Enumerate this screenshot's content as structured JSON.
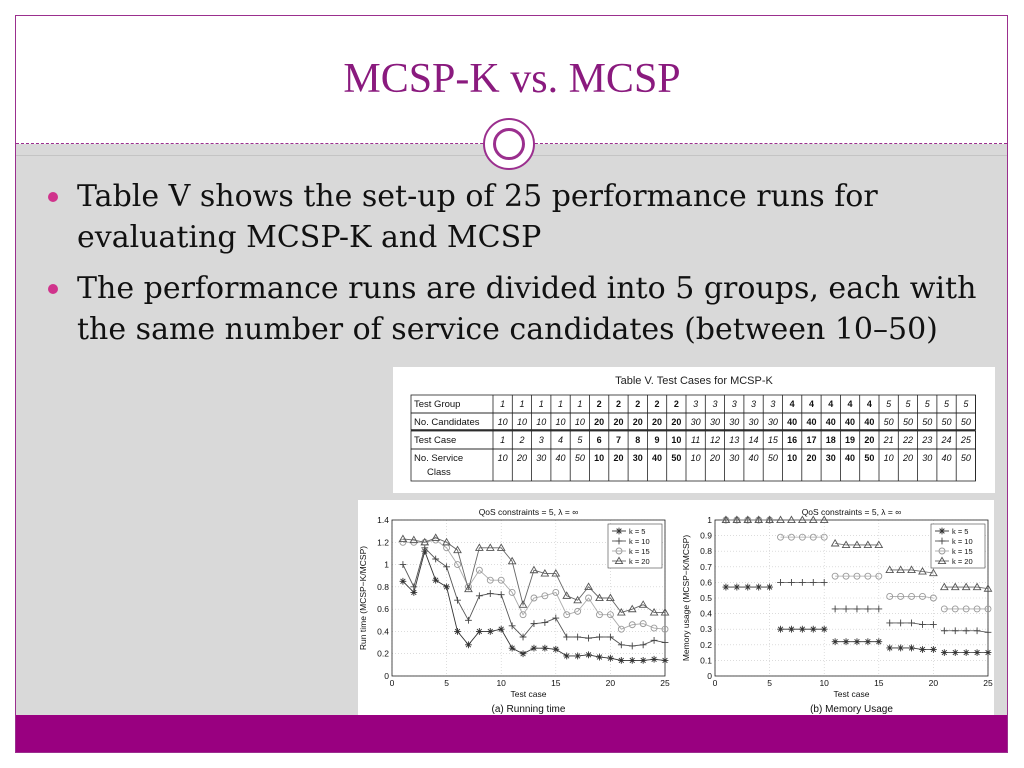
{
  "slide": {
    "title": "MCSP-K vs. MCSP",
    "bullets": [
      "Table V shows the set-up of 25 performance runs for evaluating MCSP-K and MCSP",
      "The performance runs are divided  into 5 groups, each with the same number of service candidates (between 10–50)"
    ],
    "colors": {
      "accent": "#8a1a7e",
      "bullet": "#d0338c",
      "footer": "#990080",
      "body_bg": "#d9d9d9"
    }
  },
  "table_v": {
    "caption": "Table V.  Test Cases for MCSP-K",
    "rows": [
      {
        "label": "Test Group",
        "cells": [
          "1",
          "1",
          "1",
          "1",
          "1",
          "2",
          "2",
          "2",
          "2",
          "2",
          "3",
          "3",
          "3",
          "3",
          "3",
          "4",
          "4",
          "4",
          "4",
          "4",
          "5",
          "5",
          "5",
          "5",
          "5"
        ]
      },
      {
        "label": "No. Candidates",
        "cells": [
          "10",
          "10",
          "10",
          "10",
          "10",
          "20",
          "20",
          "20",
          "20",
          "20",
          "30",
          "30",
          "30",
          "30",
          "30",
          "40",
          "40",
          "40",
          "40",
          "40",
          "50",
          "50",
          "50",
          "50",
          "50"
        ]
      },
      {
        "label": "Test Case",
        "cells": [
          "1",
          "2",
          "3",
          "4",
          "5",
          "6",
          "7",
          "8",
          "9",
          "10",
          "11",
          "12",
          "13",
          "14",
          "15",
          "16",
          "17",
          "18",
          "19",
          "20",
          "21",
          "22",
          "23",
          "24",
          "25"
        ]
      },
      {
        "label": "No. Service Class",
        "cells": [
          "10",
          "20",
          "30",
          "40",
          "50",
          "10",
          "20",
          "30",
          "40",
          "50",
          "10",
          "20",
          "30",
          "40",
          "50",
          "10",
          "20",
          "30",
          "40",
          "50",
          "10",
          "20",
          "30",
          "40",
          "50"
        ]
      }
    ]
  },
  "chart_data": [
    {
      "type": "line",
      "title": "QoS constraints = 5, λ = ∞",
      "caption": "(a)  Running time",
      "xlabel": "Test case",
      "ylabel": "Run time (MCSP−K/MCSP)",
      "xlim": [
        0,
        25
      ],
      "ylim": [
        0,
        1.4
      ],
      "xticks": [
        "0",
        "5",
        "10",
        "15",
        "20",
        "25"
      ],
      "yticks": [
        "0",
        "0.2",
        "0.4",
        "0.6",
        "0.8",
        "1",
        "1.2",
        "1.4"
      ],
      "grid": true,
      "legend": "top-right",
      "x": [
        1,
        2,
        3,
        4,
        5,
        6,
        7,
        8,
        9,
        10,
        11,
        12,
        13,
        14,
        15,
        16,
        17,
        18,
        19,
        20,
        21,
        22,
        23,
        24,
        25
      ],
      "series": [
        {
          "name": "k = 5",
          "marker": "star",
          "values": [
            0.85,
            0.75,
            1.12,
            0.86,
            0.8,
            0.4,
            0.28,
            0.4,
            0.4,
            0.42,
            0.25,
            0.2,
            0.25,
            0.25,
            0.24,
            0.18,
            0.18,
            0.19,
            0.17,
            0.16,
            0.14,
            0.14,
            0.14,
            0.15,
            0.14
          ]
        },
        {
          "name": "k = 10",
          "marker": "plus",
          "values": [
            1.0,
            0.8,
            1.15,
            1.05,
            0.98,
            0.68,
            0.5,
            0.72,
            0.74,
            0.73,
            0.45,
            0.35,
            0.47,
            0.48,
            0.52,
            0.35,
            0.35,
            0.34,
            0.35,
            0.35,
            0.28,
            0.27,
            0.28,
            0.32,
            0.3
          ]
        },
        {
          "name": "k = 15",
          "marker": "circle",
          "values": [
            1.2,
            1.2,
            1.2,
            1.22,
            1.15,
            1.0,
            0.8,
            0.95,
            0.86,
            0.86,
            0.75,
            0.55,
            0.7,
            0.72,
            0.75,
            0.55,
            0.58,
            0.7,
            0.55,
            0.55,
            0.42,
            0.46,
            0.47,
            0.43,
            0.42
          ]
        },
        {
          "name": "k = 20",
          "marker": "triangle",
          "values": [
            1.23,
            1.22,
            1.2,
            1.24,
            1.2,
            1.13,
            0.78,
            1.15,
            1.15,
            1.15,
            1.03,
            0.64,
            0.95,
            0.92,
            0.92,
            0.72,
            0.68,
            0.8,
            0.7,
            0.7,
            0.57,
            0.6,
            0.64,
            0.57,
            0.57
          ]
        }
      ]
    },
    {
      "type": "line",
      "title": "QoS constraints = 5, λ = ∞",
      "caption": "(b)  Memory Usage",
      "xlabel": "Test case",
      "ylabel": "Memory usage (MCSP−K/MCSP)",
      "xlim": [
        0,
        25
      ],
      "ylim": [
        0,
        1
      ],
      "xticks": [
        "0",
        "5",
        "10",
        "15",
        "20",
        "25"
      ],
      "yticks": [
        "0",
        "0.1",
        "0.2",
        "0.3",
        "0.4",
        "0.5",
        "0.6",
        "0.7",
        "0.8",
        "0.9",
        "1"
      ],
      "grid": true,
      "legend": "top-right",
      "x": [
        1,
        2,
        3,
        4,
        5,
        6,
        7,
        8,
        9,
        10,
        11,
        12,
        13,
        14,
        15,
        16,
        17,
        18,
        19,
        20,
        21,
        22,
        23,
        24,
        25
      ],
      "series": [
        {
          "name": "k = 5",
          "marker": "star",
          "values": [
            0.57,
            0.57,
            0.57,
            0.57,
            0.57,
            0.3,
            0.3,
            0.3,
            0.3,
            0.3,
            0.22,
            0.22,
            0.22,
            0.22,
            0.22,
            0.18,
            0.18,
            0.18,
            0.17,
            0.17,
            0.15,
            0.15,
            0.15,
            0.15,
            0.15
          ]
        },
        {
          "name": "k = 10",
          "marker": "plus",
          "values": [
            1.0,
            1.0,
            1.0,
            1.0,
            1.0,
            0.6,
            0.6,
            0.6,
            0.6,
            0.6,
            0.43,
            0.43,
            0.43,
            0.43,
            0.43,
            0.34,
            0.34,
            0.34,
            0.33,
            0.33,
            0.29,
            0.29,
            0.29,
            0.29,
            0.28
          ]
        },
        {
          "name": "k = 15",
          "marker": "circle",
          "values": [
            1.0,
            1.0,
            1.0,
            1.0,
            1.0,
            0.89,
            0.89,
            0.89,
            0.89,
            0.89,
            0.64,
            0.64,
            0.64,
            0.64,
            0.64,
            0.51,
            0.51,
            0.51,
            0.51,
            0.5,
            0.43,
            0.43,
            0.43,
            0.43,
            0.43
          ]
        },
        {
          "name": "k = 20",
          "marker": "triangle",
          "values": [
            1.0,
            1.0,
            1.0,
            1.0,
            1.0,
            1.0,
            1.0,
            1.0,
            1.0,
            1.0,
            0.85,
            0.84,
            0.84,
            0.84,
            0.84,
            0.68,
            0.68,
            0.68,
            0.67,
            0.66,
            0.57,
            0.57,
            0.57,
            0.57,
            0.56
          ]
        }
      ]
    }
  ]
}
